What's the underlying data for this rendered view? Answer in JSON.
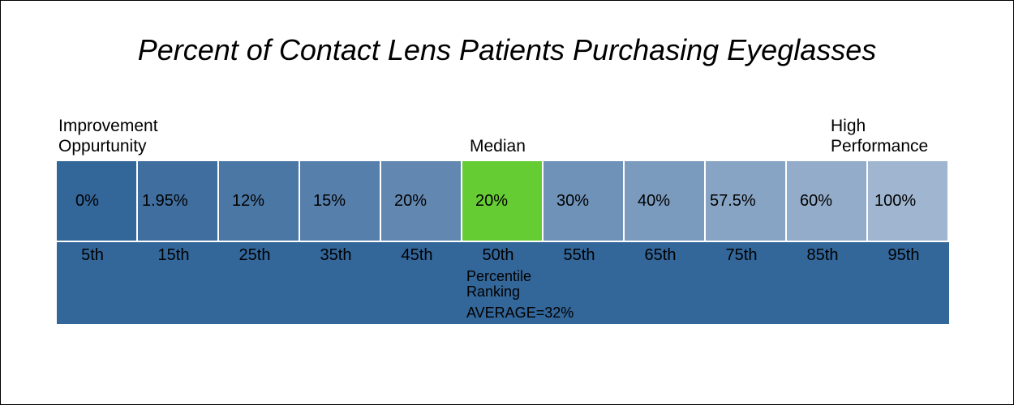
{
  "chart_data": {
    "type": "table",
    "title": "Percent of Contact Lens Patients Purchasing Eyeglasses",
    "labels": {
      "left": [
        "Improvement",
        "Oppurtunity"
      ],
      "median": "Median",
      "right": [
        "High",
        "Performance"
      ]
    },
    "categories": [
      "5th",
      "15th",
      "25th",
      "35th",
      "45th",
      "50th",
      "55th",
      "65th",
      "75th",
      "85th",
      "95th"
    ],
    "values": [
      "0%",
      "1.95%",
      "12%",
      "15%",
      "20%",
      "20%",
      "30%",
      "40%",
      "57.5%",
      "60%",
      "100%"
    ],
    "highlight_index": 5,
    "highlight_color": "#66cc33",
    "cell_colors": [
      "#336699",
      "#3f6e9f",
      "#4b77a5",
      "#567fab",
      "#6288b1",
      "#66cc33",
      "#6f92b8",
      "#7b9bbe",
      "#87a4c4",
      "#93acca",
      "#a0b6d0"
    ],
    "band_color": "#336699",
    "xlabel": [
      "Percentile",
      "Ranking"
    ],
    "average_label": "AVERAGE=32%"
  }
}
